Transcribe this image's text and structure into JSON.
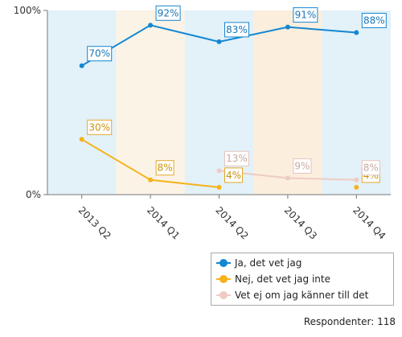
{
  "chart_data": {
    "type": "line",
    "categories": [
      "2013 Q2",
      "2014 Q1",
      "2014 Q2",
      "2014 Q3",
      "2014 Q4"
    ],
    "ylim": [
      0,
      100
    ],
    "y_ticks": [
      {
        "value": 100,
        "label": "100%"
      },
      {
        "value": 0,
        "label": "0%"
      }
    ],
    "series": [
      {
        "name": "Ja, det vet jag",
        "color": "#1387d3",
        "values": [
          70,
          92,
          83,
          91,
          88
        ],
        "labels": [
          "70%",
          "92%",
          "83%",
          "91%",
          "88%"
        ]
      },
      {
        "name": "Nej, det vet jag inte",
        "color": "#f4b31a",
        "values": [
          30,
          8,
          4,
          null,
          4
        ],
        "labels": [
          "30%",
          "8%",
          "4%",
          "",
          "4%"
        ]
      },
      {
        "name": "Vet ej om jag känner till det",
        "color": "#eecbc4",
        "values": [
          null,
          null,
          13,
          9,
          8
        ],
        "labels": [
          "",
          "",
          "13%",
          "9%",
          "8%"
        ]
      }
    ],
    "band_colors": [
      "#e3f1f8",
      "#fbf3e6",
      "#e3f1f8",
      "#fbeedd",
      "#e3f1f8"
    ],
    "grid": false,
    "legend_position": "bottom-right"
  },
  "footer": {
    "respondents": "Respondenter: 118"
  }
}
